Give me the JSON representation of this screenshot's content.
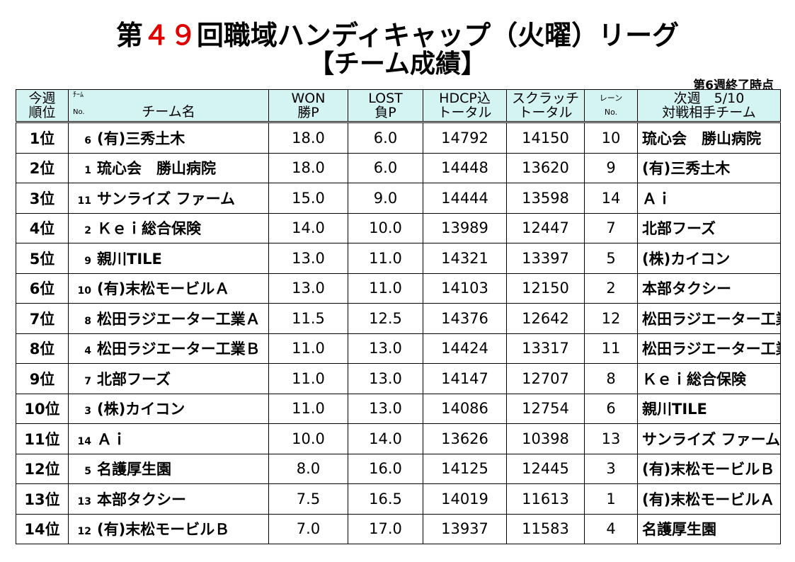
{
  "title": {
    "prefix": "第",
    "number": "４９",
    "suffix": "回職域ハンディキャップ（火曜）リーグ"
  },
  "subtitle": "【チーム成績】",
  "week_status": "第6週終了時点",
  "headers": {
    "rank_top": "今週",
    "rank_bottom": "順位",
    "team_no_top": "ﾁｰﾑ",
    "team_no_bottom": "No.",
    "team_name": "チーム名",
    "won_top": "WON",
    "won_bottom": "勝P",
    "lost_top": "LOST",
    "lost_bottom": "負P",
    "hdcp_top": "HDCP込",
    "hdcp_bottom": "トータル",
    "scratch_top": "スクラッチ",
    "scratch_bottom": "トータル",
    "lane_top": "レーン",
    "lane_bottom": "No.",
    "opp_top": "次週　5/10",
    "opp_bottom": "対戦相手チーム"
  },
  "rows": [
    {
      "rank": "1位",
      "no": "6",
      "team": "(有)三秀土木",
      "won": "18.0",
      "lost": "6.0",
      "hdcp": "14792",
      "scratch": "14150",
      "lane": "10",
      "opponent": "琉心会　勝山病院"
    },
    {
      "rank": "2位",
      "no": "1",
      "team": "琉心会　勝山病院",
      "won": "18.0",
      "lost": "6.0",
      "hdcp": "14448",
      "scratch": "13620",
      "lane": "9",
      "opponent": "(有)三秀土木"
    },
    {
      "rank": "3位",
      "no": "11",
      "team": "サンライズ ファーム",
      "won": "15.0",
      "lost": "9.0",
      "hdcp": "14444",
      "scratch": "13598",
      "lane": "14",
      "opponent": "Ａｉ"
    },
    {
      "rank": "4位",
      "no": "2",
      "team": "Ｋｅｉ総合保険",
      "won": "14.0",
      "lost": "10.0",
      "hdcp": "13989",
      "scratch": "12447",
      "lane": "7",
      "opponent": "北部フーズ"
    },
    {
      "rank": "5位",
      "no": "9",
      "team": "親川TILE",
      "won": "13.0",
      "lost": "11.0",
      "hdcp": "14321",
      "scratch": "13397",
      "lane": "5",
      "opponent": "(株)カイコン"
    },
    {
      "rank": "6位",
      "no": "10",
      "team": "(有)末松モービルＡ",
      "won": "13.0",
      "lost": "11.0",
      "hdcp": "14103",
      "scratch": "12150",
      "lane": "2",
      "opponent": "本部タクシー"
    },
    {
      "rank": "7位",
      "no": "8",
      "team": "松田ラジエーター工業Ａ",
      "won": "11.5",
      "lost": "12.5",
      "hdcp": "14376",
      "scratch": "12642",
      "lane": "12",
      "opponent": "松田ラジエーター工業Ｂ"
    },
    {
      "rank": "8位",
      "no": "4",
      "team": "松田ラジエーター工業Ｂ",
      "won": "11.0",
      "lost": "13.0",
      "hdcp": "14424",
      "scratch": "13317",
      "lane": "11",
      "opponent": "松田ラジエーター工業Ａ"
    },
    {
      "rank": "9位",
      "no": "7",
      "team": "北部フーズ",
      "won": "11.0",
      "lost": "13.0",
      "hdcp": "14147",
      "scratch": "12707",
      "lane": "8",
      "opponent": "Ｋｅｉ総合保険"
    },
    {
      "rank": "10位",
      "no": "3",
      "team": "(株)カイコン",
      "won": "11.0",
      "lost": "13.0",
      "hdcp": "14086",
      "scratch": "12754",
      "lane": "6",
      "opponent": "親川TILE"
    },
    {
      "rank": "11位",
      "no": "14",
      "team": "Ａｉ",
      "won": "10.0",
      "lost": "14.0",
      "hdcp": "13626",
      "scratch": "10398",
      "lane": "13",
      "opponent": "サンライズ ファーム"
    },
    {
      "rank": "12位",
      "no": "5",
      "team": "名護厚生園",
      "won": "8.0",
      "lost": "16.0",
      "hdcp": "14125",
      "scratch": "12445",
      "lane": "3",
      "opponent": "(有)末松モービルＢ"
    },
    {
      "rank": "13位",
      "no": "13",
      "team": "本部タクシー",
      "won": "7.5",
      "lost": "16.5",
      "hdcp": "14019",
      "scratch": "11613",
      "lane": "1",
      "opponent": "(有)末松モービルＡ"
    },
    {
      "rank": "14位",
      "no": "12",
      "team": "(有)末松モービルＢ",
      "won": "7.0",
      "lost": "17.0",
      "hdcp": "13937",
      "scratch": "11583",
      "lane": "4",
      "opponent": "名護厚生園"
    }
  ]
}
